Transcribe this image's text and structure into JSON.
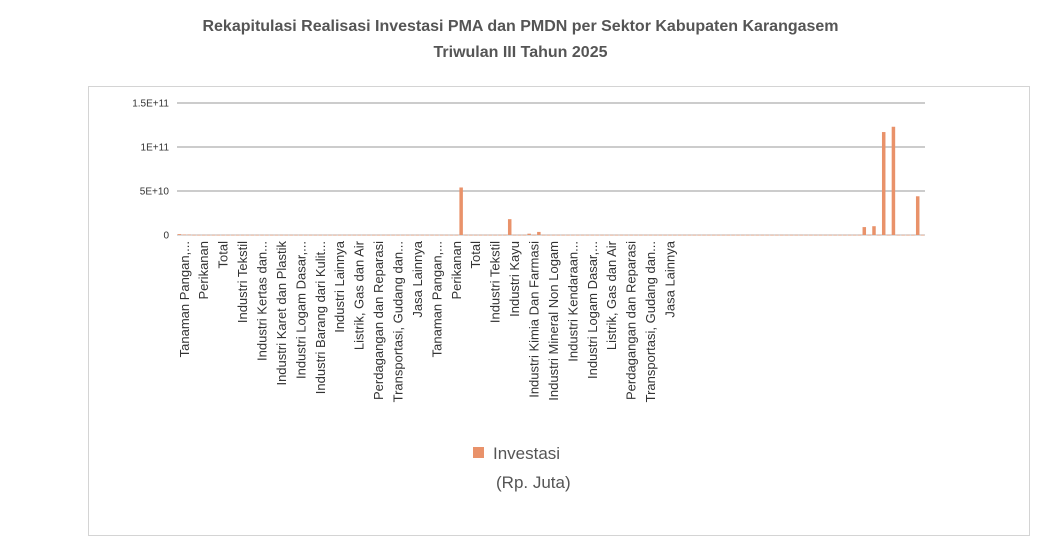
{
  "title_line1": "Rekapitulasi Realisasi Investasi PMA dan PMDN per Sektor Kabupaten Karangasem",
  "title_line2": "Triwulan III Tahun 2025",
  "colors": {
    "bar": "#e9926a",
    "grid": "#9a9a9a",
    "text": "#333333",
    "title": "#555555"
  },
  "chart_data": {
    "type": "bar",
    "ylim": [
      0,
      150000000000
    ],
    "yticks": [
      {
        "value": 0,
        "label": "0"
      },
      {
        "value": 50000000000,
        "label": "5E+10"
      },
      {
        "value": 100000000000,
        "label": "1E+11"
      },
      {
        "value": 150000000000,
        "label": "1.5E+11"
      }
    ],
    "grid": true,
    "legend_position": "bottom",
    "series": [
      {
        "name": "Investasi (Rp. Juta)",
        "values": [
          1000000000,
          500000000,
          500000000,
          200000000,
          200000000,
          200000000,
          200000000,
          200000000,
          200000000,
          200000000,
          200000000,
          200000000,
          200000000,
          200000000,
          200000000,
          200000000,
          200000000,
          200000000,
          200000000,
          200000000,
          200000000,
          200000000,
          200000000,
          200000000,
          200000000,
          200000000,
          200000000,
          200000000,
          200000000,
          200000000,
          200000000,
          200000000,
          200000000,
          200000000,
          200000000,
          200000000,
          200000000,
          200000000,
          200000000,
          200000000,
          200000000,
          200000000,
          200000000,
          200000000,
          200000000,
          200000000,
          200000000,
          200000000,
          200000000,
          200000000,
          200000000,
          200000000,
          200000000,
          200000000,
          200000000,
          200000000,
          200000000,
          200000000,
          54000000000,
          200000000,
          200000000,
          200000000,
          200000000,
          200000000,
          200000000,
          200000000,
          200000000,
          200000000,
          18000000000,
          200000000,
          200000000,
          200000000,
          1500000000,
          200000000,
          3500000000,
          200000000,
          200000000,
          200000000,
          200000000,
          200000000,
          200000000,
          200000000,
          200000000,
          200000000,
          200000000,
          200000000,
          200000000,
          200000000,
          200000000,
          200000000,
          200000000,
          200000000,
          200000000,
          200000000,
          200000000,
          200000000,
          200000000,
          200000000,
          200000000,
          200000000,
          200000000,
          200000000,
          200000000,
          200000000,
          200000000,
          200000000,
          200000000,
          200000000,
          200000000,
          200000000,
          200000000,
          200000000,
          200000000,
          200000000,
          200000000,
          200000000,
          200000000,
          200000000,
          200000000,
          200000000,
          200000000,
          200000000,
          200000000,
          200000000,
          200000000,
          200000000,
          200000000,
          200000000,
          200000000,
          200000000,
          200000000,
          200000000,
          200000000,
          200000000,
          200000000,
          200000000,
          200000000,
          200000000,
          200000000,
          200000000,
          200000000,
          9000000000,
          200000000,
          10000000000,
          200000000,
          117000000000,
          200000000,
          123000000000,
          200000000,
          200000000,
          200000000,
          200000000,
          44000000000,
          200000000
        ]
      }
    ],
    "category_labels": [
      {
        "index": 1,
        "label": "Tanaman Pangan,..."
      },
      {
        "index": 5,
        "label": "Perikanan"
      },
      {
        "index": 9,
        "label": "Total"
      },
      {
        "index": 13,
        "label": "Industri Tekstil"
      },
      {
        "index": 17,
        "label": "Industri Kertas dan..."
      },
      {
        "index": 21,
        "label": "Industri Karet dan Plastik"
      },
      {
        "index": 25,
        "label": "Industri Logam Dasar,..."
      },
      {
        "index": 29,
        "label": "Industri Barang dari Kulit..."
      },
      {
        "index": 33,
        "label": "Industri Lainnya"
      },
      {
        "index": 37,
        "label": "Listrik, Gas dan Air"
      },
      {
        "index": 41,
        "label": "Perdagangan dan Reparasi"
      },
      {
        "index": 45,
        "label": "Transportasi, Gudang dan..."
      },
      {
        "index": 49,
        "label": "Jasa Lainnya"
      },
      {
        "index": 53,
        "label": "Tanaman Pangan,..."
      },
      {
        "index": 57,
        "label": "Perikanan"
      },
      {
        "index": 61,
        "label": "Total"
      },
      {
        "index": 65,
        "label": "Industri Tekstil"
      },
      {
        "index": 69,
        "label": "Industri Kayu"
      },
      {
        "index": 73,
        "label": "Industri Kimia Dan Farmasi"
      },
      {
        "index": 77,
        "label": "Industri Mineral Non Logam"
      },
      {
        "index": 81,
        "label": "Industri Kendaraan..."
      },
      {
        "index": 85,
        "label": "Industri Logam Dasar,..."
      },
      {
        "index": 89,
        "label": "Listrik, Gas dan Air"
      },
      {
        "index": 93,
        "label": "Perdagangan dan Reparasi"
      },
      {
        "index": 97,
        "label": "Transportasi, Gudang dan..."
      },
      {
        "index": 101,
        "label": "Jasa Lainnya"
      }
    ],
    "legend_lines": [
      "Investasi",
      "(Rp. Juta)"
    ]
  }
}
